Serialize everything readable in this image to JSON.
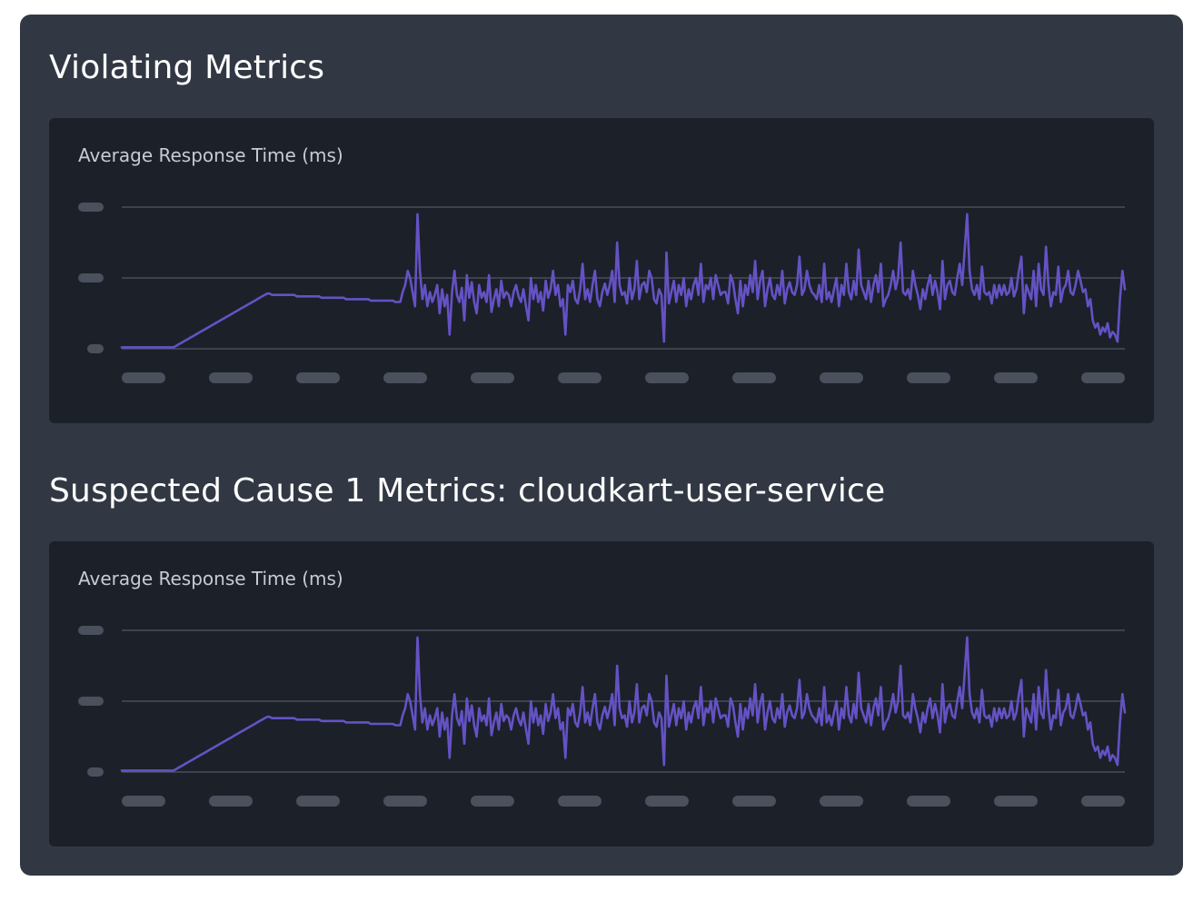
{
  "sections": [
    {
      "title": "Violating Metrics",
      "card_title": "Average Response Time (ms)"
    },
    {
      "title": "Suspected Cause 1 Metrics: cloudkart-user-service",
      "card_title": "Average Response Time (ms)"
    }
  ],
  "colors": {
    "panel_bg": "#323843",
    "card_bg": "#1c2029",
    "line": "#6452c4",
    "gridline": "#484e5a",
    "placeholder": "#4a505c"
  },
  "chart_data": [
    {
      "type": "line",
      "title": "Average Response Time (ms)",
      "y_ticks": 3,
      "x_ticks": 12,
      "ylim": [
        0,
        100
      ],
      "grid": true,
      "series": [
        {
          "values": [
            1,
            1,
            1,
            1,
            1,
            1,
            1,
            1,
            1,
            1,
            1,
            1,
            1,
            1,
            1,
            1,
            1,
            1,
            1,
            1,
            1,
            1,
            2,
            3,
            4,
            5,
            6,
            7,
            8,
            9,
            10,
            11,
            12,
            13,
            14,
            15,
            16,
            17,
            18,
            19,
            20,
            21,
            22,
            23,
            24,
            25,
            26,
            27,
            28,
            29,
            30,
            31,
            32,
            33,
            34,
            35,
            36,
            37,
            38,
            39,
            39,
            38,
            38,
            38,
            38,
            38,
            38,
            38,
            38,
            38,
            38,
            37,
            37,
            37,
            37,
            37,
            37,
            37,
            37,
            37,
            37,
            36,
            36,
            36,
            36,
            36,
            36,
            36,
            36,
            36,
            36,
            35,
            35,
            35,
            35,
            35,
            35,
            35,
            35,
            35,
            35,
            34,
            34,
            34,
            34,
            34,
            34,
            34,
            34,
            34,
            34,
            33,
            33,
            33,
            40,
            45,
            55,
            50,
            40,
            30,
            95,
            55,
            35,
            45,
            30,
            40,
            33,
            38,
            45,
            25,
            42,
            30,
            38,
            10,
            40,
            55,
            38,
            33,
            43,
            20,
            52,
            36,
            47,
            33,
            25,
            45,
            36,
            40,
            33,
            52,
            26,
            35,
            42,
            30,
            48,
            36,
            40,
            38,
            30,
            40,
            45,
            37,
            33,
            42,
            30,
            20,
            50,
            35,
            45,
            33,
            40,
            27,
            48,
            36,
            42,
            55,
            38,
            45,
            30,
            35,
            10,
            45,
            40,
            48,
            35,
            32,
            42,
            60,
            35,
            42,
            33,
            45,
            55,
            35,
            30,
            40,
            46,
            38,
            45,
            55,
            33,
            75,
            45,
            38,
            40,
            32,
            50,
            35,
            42,
            62,
            35,
            45,
            47,
            40,
            55,
            50,
            35,
            32,
            42,
            38,
            5,
            68,
            32,
            40,
            48,
            33,
            45,
            38,
            50,
            30,
            42,
            35,
            45,
            50,
            38,
            60,
            33,
            45,
            42,
            50,
            35,
            52,
            45,
            38,
            40,
            40,
            32,
            52,
            47,
            35,
            25,
            48,
            30,
            45,
            38,
            52,
            40,
            62,
            35,
            48,
            55,
            30,
            42,
            50,
            38,
            35,
            45,
            38,
            55,
            32,
            42,
            47,
            40,
            38,
            45,
            65,
            38,
            42,
            55,
            45,
            40,
            38,
            35,
            45,
            33,
            60,
            35,
            40,
            33,
            42,
            50,
            30,
            45,
            38,
            60,
            40,
            35,
            48,
            38,
            70,
            45,
            40,
            35,
            48,
            33,
            45,
            52,
            40,
            60,
            30,
            35,
            38,
            45,
            55,
            42,
            50,
            75,
            40,
            38,
            42,
            35,
            55,
            45,
            38,
            28,
            42,
            35,
            45,
            52,
            38,
            48,
            40,
            28,
            62,
            35,
            45,
            48,
            40,
            38,
            50,
            60,
            45,
            70,
            95,
            55,
            42,
            38,
            45,
            35,
            58,
            40,
            38,
            40,
            32,
            45,
            36,
            45,
            38,
            45,
            38,
            40,
            50,
            37,
            42,
            55,
            65,
            25,
            45,
            40,
            35,
            55,
            30,
            60,
            42,
            38,
            72,
            45,
            30,
            40,
            38,
            58,
            33,
            42,
            45,
            55,
            40,
            38,
            45,
            55,
            48,
            40,
            42,
            30,
            35,
            20,
            15,
            18,
            10,
            15,
            12,
            18,
            8,
            12,
            10,
            5,
            35,
            55,
            42
          ]
        }
      ]
    },
    {
      "type": "line",
      "title": "Average Response Time (ms)",
      "y_ticks": 3,
      "x_ticks": 12,
      "ylim": [
        0,
        100
      ],
      "grid": true,
      "series": [
        {
          "values": [
            1,
            1,
            1,
            1,
            1,
            1,
            1,
            1,
            1,
            1,
            1,
            1,
            1,
            1,
            1,
            1,
            1,
            1,
            1,
            1,
            1,
            1,
            2,
            3,
            4,
            5,
            6,
            7,
            8,
            9,
            10,
            11,
            12,
            13,
            14,
            15,
            16,
            17,
            18,
            19,
            20,
            21,
            22,
            23,
            24,
            25,
            26,
            27,
            28,
            29,
            30,
            31,
            32,
            33,
            34,
            35,
            36,
            37,
            38,
            39,
            39,
            38,
            38,
            38,
            38,
            38,
            38,
            38,
            38,
            38,
            38,
            37,
            37,
            37,
            37,
            37,
            37,
            37,
            37,
            37,
            37,
            36,
            36,
            36,
            36,
            36,
            36,
            36,
            36,
            36,
            36,
            35,
            35,
            35,
            35,
            35,
            35,
            35,
            35,
            35,
            35,
            34,
            34,
            34,
            34,
            34,
            34,
            34,
            34,
            34,
            34,
            33,
            33,
            33,
            40,
            45,
            55,
            50,
            40,
            30,
            95,
            55,
            35,
            45,
            30,
            40,
            33,
            38,
            45,
            25,
            42,
            30,
            38,
            10,
            40,
            55,
            38,
            33,
            43,
            20,
            52,
            36,
            47,
            33,
            25,
            45,
            36,
            40,
            33,
            52,
            26,
            35,
            42,
            30,
            48,
            36,
            40,
            38,
            30,
            40,
            45,
            37,
            33,
            42,
            30,
            20,
            50,
            35,
            45,
            33,
            40,
            27,
            48,
            36,
            42,
            55,
            38,
            45,
            30,
            35,
            10,
            45,
            40,
            48,
            35,
            32,
            42,
            60,
            35,
            42,
            33,
            45,
            55,
            35,
            30,
            40,
            46,
            38,
            45,
            55,
            33,
            75,
            45,
            38,
            40,
            32,
            50,
            35,
            42,
            62,
            35,
            45,
            47,
            40,
            55,
            50,
            35,
            32,
            42,
            38,
            5,
            68,
            32,
            40,
            48,
            33,
            45,
            38,
            50,
            30,
            42,
            35,
            45,
            50,
            38,
            60,
            33,
            45,
            42,
            50,
            35,
            52,
            45,
            38,
            40,
            40,
            32,
            52,
            47,
            35,
            25,
            48,
            30,
            45,
            38,
            52,
            40,
            62,
            35,
            48,
            55,
            30,
            42,
            50,
            38,
            35,
            45,
            38,
            55,
            32,
            42,
            47,
            40,
            38,
            45,
            65,
            38,
            42,
            55,
            45,
            40,
            38,
            35,
            45,
            33,
            60,
            35,
            40,
            33,
            42,
            50,
            30,
            45,
            38,
            60,
            40,
            35,
            48,
            38,
            70,
            45,
            40,
            35,
            48,
            33,
            45,
            52,
            40,
            60,
            30,
            35,
            38,
            45,
            55,
            42,
            50,
            75,
            40,
            38,
            42,
            35,
            55,
            45,
            38,
            28,
            42,
            35,
            45,
            52,
            38,
            48,
            40,
            28,
            62,
            35,
            45,
            48,
            40,
            38,
            50,
            60,
            45,
            70,
            95,
            55,
            42,
            38,
            45,
            35,
            58,
            40,
            38,
            40,
            32,
            45,
            36,
            45,
            38,
            45,
            38,
            40,
            50,
            37,
            42,
            55,
            65,
            25,
            45,
            40,
            35,
            55,
            30,
            60,
            42,
            38,
            72,
            45,
            30,
            40,
            38,
            58,
            33,
            42,
            45,
            55,
            40,
            38,
            45,
            55,
            48,
            40,
            42,
            30,
            35,
            20,
            15,
            18,
            10,
            15,
            12,
            18,
            8,
            12,
            10,
            5,
            35,
            55,
            42
          ]
        }
      ]
    }
  ]
}
